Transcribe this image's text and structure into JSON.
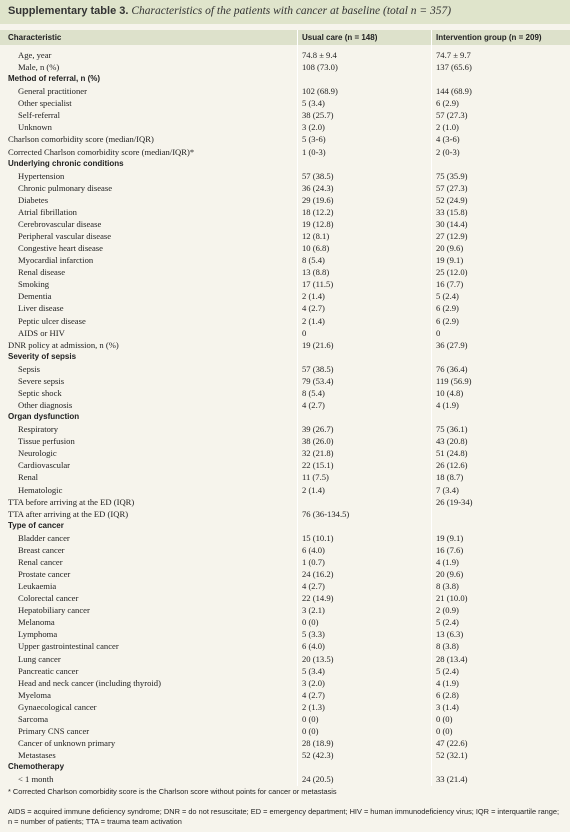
{
  "title": {
    "label": "Supplementary table 3.",
    "text": "Characteristics of the patients with cancer at baseline (total n = 357)"
  },
  "table": {
    "header": [
      "Characteristic",
      "Usual care (n = 148)",
      "Intervention group (n = 209)"
    ],
    "rows": [
      [
        "Age, year",
        "74.8 ± 9.4",
        "74.7 ± 9.7"
      ],
      [
        "Male, n (%)",
        "108 (73.0)",
        "137 (65.6)"
      ],
      [
        "Method of referral, n (%)",
        null,
        null
      ],
      [
        "General practitioner",
        "102 (68.9)",
        "144 (68.9)"
      ],
      [
        "Other specialist",
        "5 (3.4)",
        "6 (2.9)"
      ],
      [
        "Self-referral",
        "38 (25.7)",
        "57 (27.3)"
      ],
      [
        "Unknown",
        "3 (2.0)",
        "2 (1.0)"
      ],
      [
        "Charlson comorbidity score (median/IQR)",
        "5 (3-6)",
        "4 (3-6)"
      ],
      [
        "Corrected Charlson comorbidity score (median/IQR)*",
        "1 (0-3)",
        "2 (0-3)"
      ],
      [
        "Underlying chronic conditions",
        null,
        null
      ],
      [
        "Hypertension",
        "57 (38.5)",
        "75 (35.9)"
      ],
      [
        "Chronic pulmonary disease",
        "36 (24.3)",
        "57 (27.3)"
      ],
      [
        "Diabetes",
        "29 (19.6)",
        "52 (24.9)"
      ],
      [
        "Atrial fibrillation",
        "18 (12.2)",
        "33 (15.8)"
      ],
      [
        "Cerebrovascular disease",
        "19 (12.8)",
        "30 (14.4)"
      ],
      [
        "Peripheral vascular disease",
        "12 (8.1)",
        "27 (12.9)"
      ],
      [
        "Congestive heart disease",
        "10 (6.8)",
        "20 (9.6)"
      ],
      [
        "Myocardial infarction",
        "8 (5.4)",
        "19 (9.1)"
      ],
      [
        "Renal disease",
        "13 (8.8)",
        "25 (12.0)"
      ],
      [
        "Smoking",
        "17 (11.5)",
        "16 (7.7)"
      ],
      [
        "Dementia",
        "2 (1.4)",
        "5 (2.4)"
      ],
      [
        "Liver disease",
        "4 (2.7)",
        "6 (2.9)"
      ],
      [
        "Peptic ulcer disease",
        "2 (1.4)",
        "6 (2.9)"
      ],
      [
        "AIDS or HIV",
        "0",
        "0"
      ],
      [
        "DNR policy at admission, n (%)",
        "19 (21.6)",
        "36 (27.9)"
      ],
      [
        "Severity of sepsis",
        null,
        null
      ],
      [
        "Sepsis",
        "57 (38.5)",
        "76 (36.4)"
      ],
      [
        "Severe sepsis",
        "79 (53.4)",
        "119 (56.9)"
      ],
      [
        "Septic shock",
        "8 (5.4)",
        "10 (4.8)"
      ],
      [
        "Other diagnosis",
        "4 (2.7)",
        "4 (1.9)"
      ],
      [
        "Organ dysfunction",
        null,
        null
      ],
      [
        "Respiratory",
        "39 (26.7)",
        "75 (36.1)"
      ],
      [
        "Tissue perfusion",
        "38 (26.0)",
        "43 (20.8)"
      ],
      [
        "Neurologic",
        "32 (21.8)",
        "51 (24.8)"
      ],
      [
        "Cardiovascular",
        "22 (15.1)",
        "26 (12.6)"
      ],
      [
        "Renal",
        "11 (7.5)",
        "18 (8.7)"
      ],
      [
        "Hematologic",
        "2 (1.4)",
        "7 (3.4)"
      ],
      [
        "TTA before arriving at the ED (IQR)",
        null,
        "26 (19-34)"
      ],
      [
        "TTA after arriving at the ED (IQR)",
        "76 (36-134.5)",
        null
      ],
      [
        "Type of cancer",
        null,
        null
      ],
      [
        "Bladder cancer",
        "15 (10.1)",
        "19 (9.1)"
      ],
      [
        "Breast cancer",
        "6 (4.0)",
        "16 (7.6)"
      ],
      [
        "Renal cancer",
        "1 (0.7)",
        "4 (1.9)"
      ],
      [
        "Prostate cancer",
        "24 (16.2)",
        "20 (9.6)"
      ],
      [
        "Leukaemia",
        "4 (2.7)",
        "8 (3.8)"
      ],
      [
        "Colorectal cancer",
        "22 (14.9)",
        "21 (10.0)"
      ],
      [
        "Hepatobiliary cancer",
        "3 (2.1)",
        "2 (0.9)"
      ],
      [
        "Melanoma",
        "0 (0)",
        "5 (2.4)"
      ],
      [
        "Lymphoma",
        "5 (3.3)",
        "13 (6.3)"
      ],
      [
        "Upper gastrointestinal cancer",
        "6 (4.0)",
        "8 (3.8)"
      ],
      [
        "Lung cancer",
        "20 (13.5)",
        "28 (13.4)"
      ],
      [
        "Pancreatic cancer",
        "5 (3.4)",
        "5 (2.4)"
      ],
      [
        "Head and neck cancer (including thyroid)",
        "3 (2.0)",
        "4 (1.9)"
      ],
      [
        "Myeloma",
        "4 (2.7)",
        "6 (2.8)"
      ],
      [
        "Gynaecological cancer",
        "2 (1.3)",
        "3 (1.4)"
      ],
      [
        "Sarcoma",
        "0 (0)",
        "0 (0)"
      ],
      [
        "Primary CNS cancer",
        "0 (0)",
        "0 (0)"
      ],
      [
        "Cancer of unknown primary",
        "28 (18.9)",
        "47 (22.6)"
      ],
      [
        "Metastases",
        "52 (42.3)",
        "52 (32.1)"
      ],
      [
        "Chemotherapy",
        null,
        null
      ],
      [
        "< 1 month",
        "24 (20.5)",
        "33 (21.4)"
      ]
    ]
  },
  "footnotes": [
    "* Corrected Charlson comorbidity score is the Charlson score without points for cancer or metastasis",
    "AIDS = acquired immune deficiency syndrome; DNR = do not resuscitate; ED = emergency department; HIV = human immunodeficiency virus; IQR = interquartile range; n = number of patients; TTA = trauma team activation"
  ]
}
